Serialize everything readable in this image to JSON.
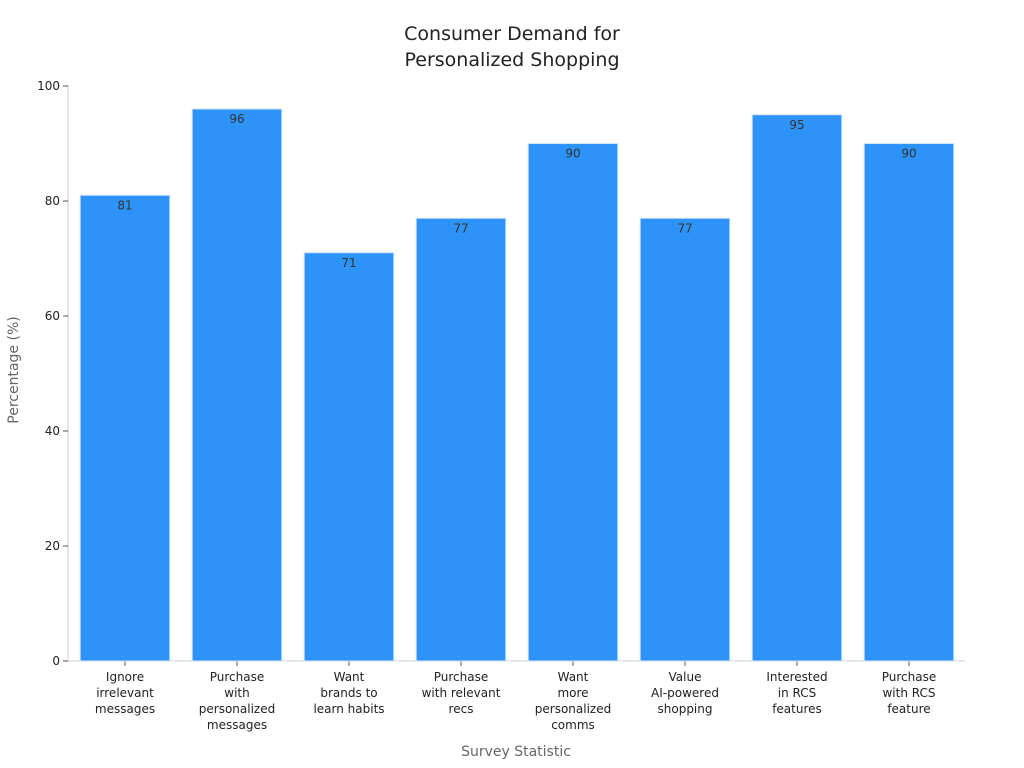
{
  "chart_data": {
    "type": "bar",
    "title": [
      "Consumer Demand for",
      "Personalized Shopping"
    ],
    "x_label": "Survey Statistic",
    "y_label": "Percentage (%)",
    "categories": [
      [
        "Ignore",
        "irrelevant",
        "messages"
      ],
      [
        "Purchase",
        "with",
        "personalized",
        "messages"
      ],
      [
        "Want",
        "brands to",
        "learn habits"
      ],
      [
        "Purchase",
        "with relevant",
        "recs"
      ],
      [
        "Want",
        "more",
        "personalized",
        "comms"
      ],
      [
        "Value",
        "AI-powered",
        "shopping"
      ],
      [
        "Interested",
        "in RCS",
        "features"
      ],
      [
        "Purchase",
        "with RCS",
        "feature"
      ]
    ],
    "values": [
      81,
      96,
      71,
      77,
      90,
      77,
      95,
      90
    ],
    "color": "#2e93f8",
    "ylim": [
      0,
      100
    ],
    "yticks": [
      0,
      20,
      40,
      60,
      80,
      100
    ],
    "grid": false
  }
}
